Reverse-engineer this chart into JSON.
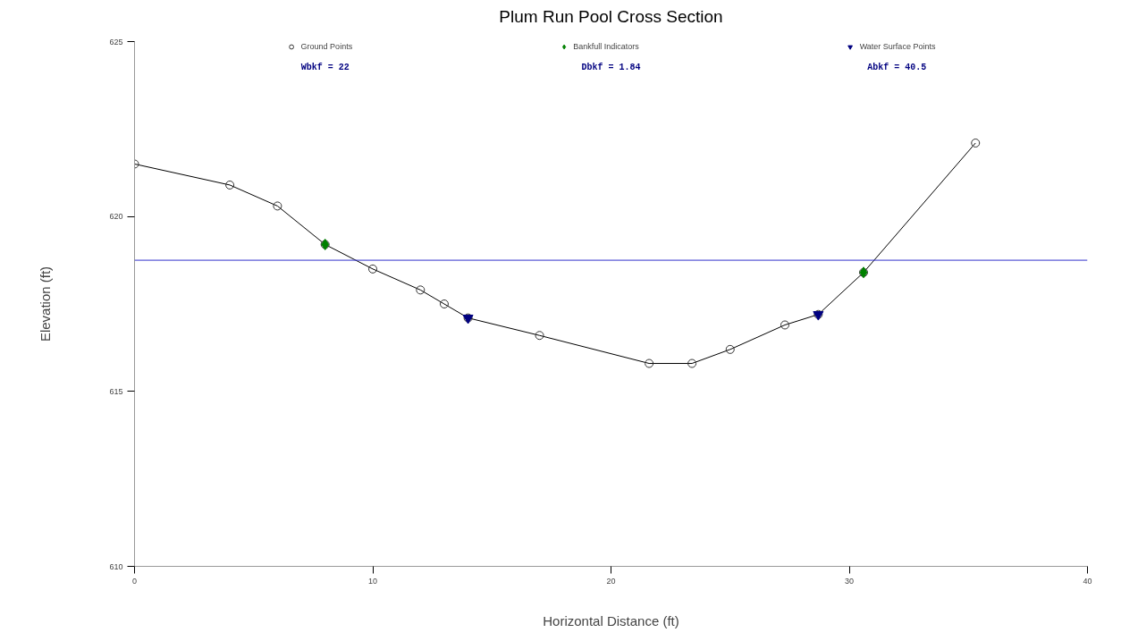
{
  "chart_data": {
    "type": "line",
    "title": "Plum Run Pool Cross Section",
    "xlabel": "Horizontal Distance (ft)",
    "ylabel": "Elevation (ft)",
    "series": [
      {
        "name": "Ground Points",
        "color": "#000000",
        "marker": "circle",
        "x": [
          0,
          4.0,
          6.0,
          8.0,
          10.0,
          12.0,
          13.0,
          14.0,
          17.0,
          21.6,
          23.4,
          25.0,
          27.3,
          28.7,
          30.6,
          35.3
        ],
        "values": [
          621.5,
          620.9,
          620.3,
          619.2,
          618.5,
          617.9,
          617.5,
          617.1,
          616.6,
          615.8,
          615.8,
          616.2,
          616.9,
          617.2,
          618.4,
          622.1
        ]
      },
      {
        "name": "Bankfull Indicators",
        "type": "scatter",
        "color": "#008000",
        "marker": "diamond",
        "x": [
          8.0,
          30.6
        ],
        "values": [
          619.2,
          618.4
        ]
      },
      {
        "name": "Water Surface Points",
        "type": "scatter",
        "color": "#000080",
        "marker": "triangle",
        "x": [
          14.0,
          28.7
        ],
        "values": [
          617.1,
          617.2
        ]
      }
    ],
    "ref_lines": [
      {
        "axis": "y",
        "value": 618.75,
        "color": "#3333cc"
      }
    ],
    "annotations": [
      "Wbkf = 22",
      "Dbkf = 1.84",
      "Abkf = 40.5"
    ],
    "xlim": [
      0,
      40
    ],
    "xticks": [
      0,
      10,
      20,
      30,
      40
    ],
    "ylim": [
      610,
      625
    ],
    "yticks": [
      610,
      615,
      620,
      625
    ],
    "grid": false,
    "legend": "top"
  }
}
